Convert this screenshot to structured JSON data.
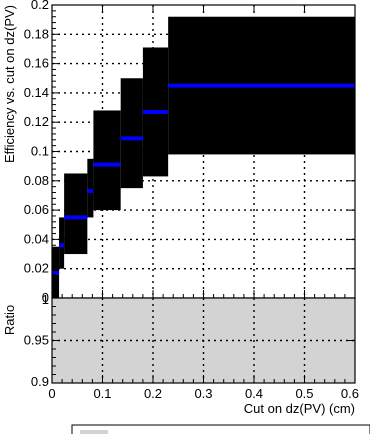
{
  "chart_data": [
    {
      "type": "scatter",
      "ylabel": "Efficiency vs. cut on dz(PV)",
      "xlim": [
        0,
        0.6
      ],
      "ylim": [
        0,
        0.2
      ],
      "x_ticks": [
        "0",
        "0.1",
        "0.2",
        "0.3",
        "0.4",
        "0.5",
        "0.6"
      ],
      "y_ticks": [
        "0",
        "0.02",
        "0.04",
        "0.06",
        "0.08",
        "0.1",
        "0.12",
        "0.14",
        "0.16",
        "0.18",
        "0.2"
      ],
      "grid": true,
      "series": [
        {
          "color": "#0000ff",
          "band_color": "#000000",
          "points": [
            {
              "x0": 0.0,
              "x1": 0.014,
              "y": 0.017,
              "ylo": 0.0,
              "yhi": 0.035
            },
            {
              "x0": 0.014,
              "x1": 0.024,
              "y": 0.036,
              "ylo": 0.02,
              "yhi": 0.055
            },
            {
              "x0": 0.024,
              "x1": 0.07,
              "y": 0.055,
              "ylo": 0.03,
              "yhi": 0.085
            },
            {
              "x0": 0.07,
              "x1": 0.082,
              "y": 0.073,
              "ylo": 0.055,
              "yhi": 0.095
            },
            {
              "x0": 0.082,
              "x1": 0.136,
              "y": 0.091,
              "ylo": 0.06,
              "yhi": 0.128
            },
            {
              "x0": 0.136,
              "x1": 0.18,
              "y": 0.109,
              "ylo": 0.075,
              "yhi": 0.15
            },
            {
              "x0": 0.18,
              "x1": 0.23,
              "y": 0.127,
              "ylo": 0.083,
              "yhi": 0.171
            },
            {
              "x0": 0.23,
              "x1": 0.6,
              "y": 0.145,
              "ylo": 0.098,
              "yhi": 0.192
            }
          ]
        }
      ]
    },
    {
      "type": "area",
      "ylabel": "Ratio",
      "xlabel": "Cut on dz(PV) (cm)",
      "xlim": [
        0,
        0.6
      ],
      "ylim": [
        0.9,
        1.0
      ],
      "x_ticks": [
        "0",
        "0.1",
        "0.2",
        "0.3",
        "0.4",
        "0.5",
        "0.6"
      ],
      "y_ticks": [
        "0.9",
        "0.95",
        "1"
      ],
      "y_tick_values": [
        0.9,
        0.95,
        1.0
      ],
      "grid": true,
      "fill_color": "#d3d3d3",
      "band": {
        "x": [
          0,
          0.6
        ],
        "ylo": 0.9,
        "yhi": 1.0
      }
    }
  ]
}
